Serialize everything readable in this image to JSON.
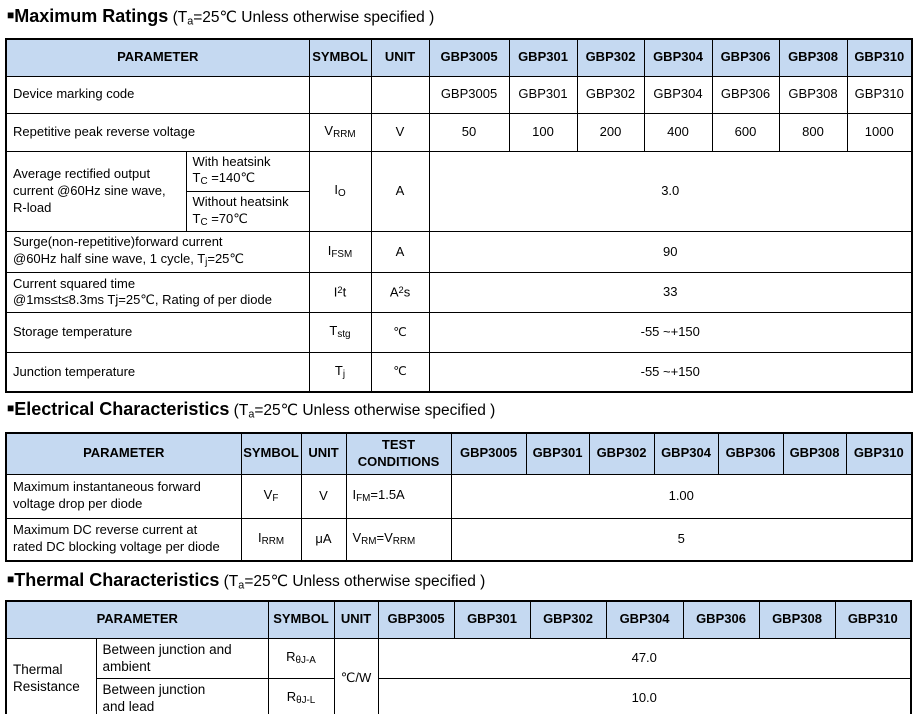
{
  "colors": {
    "page_bg": "#ffffff",
    "header_bg": "#c5d9f1",
    "border": "#000000",
    "text": "#000000"
  },
  "titles": {
    "max": {
      "bullet": "■",
      "bold": "Maximum Ratings",
      "rest": " (T~a~=25℃ Unless otherwise specified )"
    },
    "elec": {
      "bullet": "■",
      "bold": "Electrical Characteristics",
      "rest": " (T~a~=25℃ Unless otherwise specified )"
    },
    "thermal": {
      "bullet": "■",
      "bold": "Thermal Characteristics",
      "rest": " (T~a~=25℃ Unless otherwise specified )"
    }
  },
  "max_table": {
    "headers": [
      "PARAMETER",
      "SYMBOL",
      "UNIT",
      "GBP3005",
      "GBP301",
      "GBP302",
      "GBP304",
      "GBP306",
      "GBP308",
      "GBP310"
    ],
    "rows": {
      "marking": {
        "param": "Device marking code",
        "symbol": "",
        "unit": "",
        "values": [
          "GBP3005",
          "GBP301",
          "GBP302",
          "GBP304",
          "GBP306",
          "GBP308",
          "GBP310"
        ]
      },
      "vrrm": {
        "param": "Repetitive peak reverse voltage",
        "symbol": "V~RRM~",
        "unit": "V",
        "values": [
          "50",
          "100",
          "200",
          "400",
          "600",
          "800",
          "1000"
        ]
      },
      "io": {
        "param": "Average rectified output current @60Hz sine wave, R-load",
        "sub1": "With heatsink\n T~C~ =140℃",
        "sub2": "Without heatsink\nT~C~ =70℃",
        "symbol": "I~O~",
        "unit": "A",
        "value": "3.0"
      },
      "ifsm": {
        "param": "Surge(non-repetitive)forward current\n@60Hz half sine wave, 1 cycle, T~j~=25℃",
        "symbol": "I~FSM~",
        "unit": "A",
        "value": "90"
      },
      "i2t": {
        "param": "Current squared time\n@1ms≤t≤8.3ms Tj=25℃,  Rating of per diode",
        "symbol": "I^2^t",
        "unit": "A^2^s",
        "value": "33"
      },
      "tstg": {
        "param": "Storage temperature",
        "symbol": "T~stg~",
        "unit": "℃",
        "value": "-55 ~+150"
      },
      "tj": {
        "param": "Junction temperature",
        "symbol": "T~j~",
        "unit": "℃",
        "value": "-55 ~+150"
      }
    }
  },
  "elec_table": {
    "headers": [
      "PARAMETER",
      "SYMBOL",
      "UNIT",
      "TEST\nCONDITIONS",
      "GBP3005",
      "GBP301",
      "GBP302",
      "GBP304",
      "GBP306",
      "GBP308",
      "GBP310"
    ],
    "rows": {
      "vf": {
        "param": "Maximum instantaneous forward\nvoltage drop per diode",
        "symbol": "V~F~",
        "unit": "V",
        "cond": "I~FM~=1.5A",
        "value": "1.00"
      },
      "irrm": {
        "param": "Maximum DC reverse current at\nrated DC blocking voltage per diode",
        "symbol": "I~RRM~",
        "unit": "μA",
        "cond": "V~RM~=V~RRM~",
        "value": "5"
      }
    }
  },
  "thermal_table": {
    "headers": [
      "PARAMETER",
      "SYMBOL",
      "UNIT",
      "GBP3005",
      "GBP301",
      "GBP302",
      "GBP304",
      "GBP306",
      "GBP308",
      "GBP310"
    ],
    "group_param": "Thermal\nResistance",
    "unit": "℃/W",
    "rows": {
      "rja": {
        "param": "Between junction and\nambient",
        "symbol": "R~θJ-A~",
        "value": "47.0"
      },
      "rjl": {
        "param": "Between junction\nand lead",
        "symbol": "R~θJ-L~",
        "value": "10.0"
      }
    }
  }
}
